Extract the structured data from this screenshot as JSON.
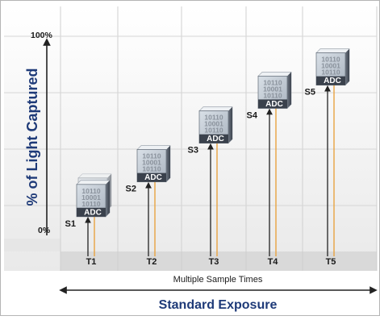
{
  "diagram": {
    "y_axis": {
      "title": "% of Light Captured",
      "top_label": "100%",
      "bottom_label": "0%"
    },
    "samples": [
      {
        "sample_label": "S1",
        "time_label": "T1",
        "light_captured_pct": 18
      },
      {
        "sample_label": "S2",
        "time_label": "T2",
        "light_captured_pct": 36
      },
      {
        "sample_label": "S3",
        "time_label": "T3",
        "light_captured_pct": 56
      },
      {
        "sample_label": "S4",
        "time_label": "T4",
        "light_captured_pct": 74
      },
      {
        "sample_label": "S5",
        "time_label": "T5",
        "light_captured_pct": 86
      }
    ],
    "chip": {
      "bits": [
        "10110",
        "10001",
        "10110"
      ],
      "label": "ADC"
    },
    "x_sub_label": "Multiple Sample Times",
    "x_main_label": "Standard Exposure",
    "colors": {
      "axis_title": "#1e3a78",
      "main_label": "#1e3a78",
      "connector": "#e8a341",
      "chip_face": "#c3ccd6",
      "chip_dark": "#2e3542",
      "grid_band": "#dedede"
    }
  }
}
